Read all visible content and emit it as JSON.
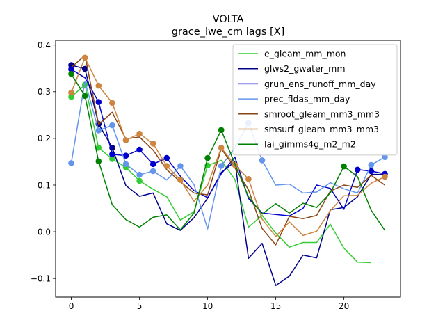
{
  "chart_data": {
    "type": "line",
    "title": "VOLTA",
    "subtitle": "grace_lwe_cm lags [X]",
    "xlabel": "",
    "ylabel": "",
    "xlim": [
      -1.15,
      24.15
    ],
    "ylim": [
      -0.14,
      0.41
    ],
    "xticks": [
      0,
      5,
      10,
      15,
      20
    ],
    "yticks": [
      -0.1,
      0.0,
      0.1,
      0.2,
      0.3,
      0.4
    ],
    "ytick_labels": [
      "−0.1",
      "0.0",
      "0.1",
      "0.2",
      "0.3",
      "0.4"
    ],
    "grid": false,
    "legend_position": "top-right",
    "series": [
      {
        "name": "e_gleam_mm_mon",
        "color": "#32cd32",
        "values": [
          0.289,
          0.315,
          0.18,
          0.156,
          0.138,
          0.109,
          0.091,
          0.075,
          0.025,
          0.043,
          0.142,
          0.153,
          0.112,
          0.01,
          0.035,
          -0.003,
          -0.033,
          -0.023,
          -0.023,
          0.016,
          -0.035,
          -0.065,
          -0.066
        ],
        "markers": [
          0,
          1,
          2,
          3,
          4,
          5,
          10
        ]
      },
      {
        "name": "glws2_gwater_mm",
        "color": "#00008b",
        "values": [
          0.357,
          0.349,
          0.231,
          0.18,
          0.099,
          0.076,
          0.083,
          0.017,
          0.003,
          0.03,
          0.072,
          0.127,
          0.15,
          -0.057,
          -0.025,
          -0.115,
          -0.095,
          -0.05,
          -0.056,
          0.047,
          0.052,
          0.075,
          0.123,
          0.123
        ],
        "markers": [
          0,
          1,
          2,
          3
        ]
      },
      {
        "name": "grun_ens_runoff_mm_day",
        "color": "#0000cd",
        "values": [
          0.348,
          0.33,
          0.278,
          0.166,
          0.163,
          0.176,
          0.145,
          0.158,
          0.119,
          0.088,
          0.073,
          0.124,
          0.16,
          0.071,
          0.04,
          0.037,
          0.034,
          0.05,
          0.1,
          0.093,
          0.048,
          0.133,
          0.13,
          0.124
        ],
        "markers": [
          0,
          2,
          3,
          4,
          5,
          6,
          7,
          21,
          22,
          23
        ]
      },
      {
        "name": "prec_fldas_mm_day",
        "color": "#6495ed",
        "values": [
          0.147,
          0.322,
          0.217,
          0.228,
          0.145,
          0.122,
          0.13,
          0.111,
          0.141,
          0.101,
          0.006,
          0.141,
          0.18,
          0.233,
          0.153,
          0.1,
          0.102,
          0.083,
          0.085,
          0.105,
          0.092,
          0.083,
          0.143,
          0.16
        ],
        "markers": [
          0,
          2,
          3,
          4,
          5,
          6,
          8,
          11,
          13,
          14,
          22,
          23
        ]
      },
      {
        "name": "smroot_gleam_mm3_mm3",
        "color": "#8b4513",
        "values": [
          0.352,
          0.378,
          0.23,
          0.256,
          0.199,
          0.203,
          0.175,
          0.133,
          0.107,
          0.083,
          0.079,
          0.178,
          0.137,
          0.09,
          0.007,
          -0.028,
          0.033,
          0.028,
          0.035,
          0.087,
          0.1,
          0.095,
          0.121,
          0.1
        ]
      },
      {
        "name": "smsurf_gleam_mm3_mm3",
        "color": "#cd853f",
        "values": [
          0.298,
          0.373,
          0.313,
          0.276,
          0.196,
          0.21,
          0.189,
          0.141,
          0.111,
          0.065,
          0.1,
          0.18,
          0.143,
          0.113,
          0.027,
          -0.01,
          0.021,
          -0.008,
          0.001,
          0.045,
          0.077,
          0.078,
          0.104,
          0.118
        ],
        "markers": [
          0,
          1,
          2,
          3,
          4,
          5,
          6,
          7,
          8,
          11,
          12,
          13,
          23
        ]
      },
      {
        "name": "lai_gimms4g_m2_m2",
        "color": "#008000",
        "values": [
          0.338,
          0.291,
          0.151,
          0.058,
          0.026,
          0.01,
          0.031,
          0.036,
          0.004,
          0.04,
          0.158,
          0.218,
          0.145,
          0.075,
          0.038,
          0.06,
          0.04,
          0.061,
          0.052,
          0.083,
          0.14,
          0.118,
          0.046,
          0.003
        ],
        "markers": [
          0,
          1,
          2,
          10,
          11,
          20
        ]
      }
    ]
  }
}
